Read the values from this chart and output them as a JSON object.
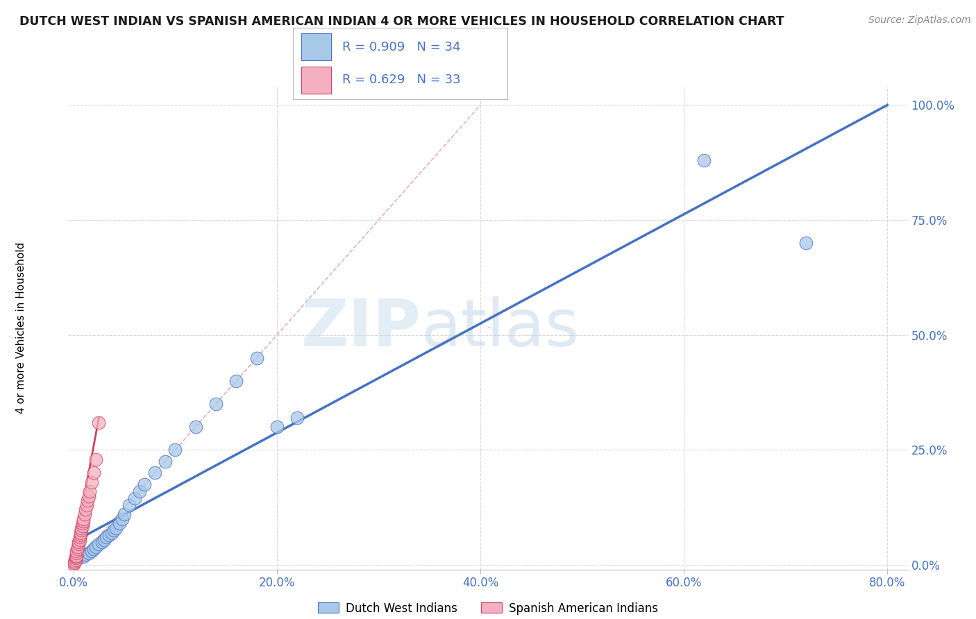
{
  "title": "DUTCH WEST INDIAN VS SPANISH AMERICAN INDIAN 4 OR MORE VEHICLES IN HOUSEHOLD CORRELATION CHART",
  "source": "Source: ZipAtlas.com",
  "ylabel": "4 or more Vehicles in Household",
  "xlabel_ticks": [
    0.0,
    0.2,
    0.4,
    0.6,
    0.8
  ],
  "xlabel_labels": [
    "0.0%",
    "20.0%",
    "40.0%",
    "60.0%",
    "80.0%"
  ],
  "ylabel_ticks": [
    0.0,
    0.25,
    0.5,
    0.75,
    1.0
  ],
  "ylabel_labels": [
    "0.0%",
    "25.0%",
    "50.0%",
    "75.0%",
    "100.0%"
  ],
  "xlim": [
    -0.005,
    0.82
  ],
  "ylim": [
    -0.01,
    1.04
  ],
  "legend_blue_r": "R = 0.909",
  "legend_blue_n": "N = 34",
  "legend_pink_r": "R = 0.629",
  "legend_pink_n": "N = 33",
  "legend_blue_label": "Dutch West Indians",
  "legend_pink_label": "Spanish American Indians",
  "blue_scatter_x": [
    0.005,
    0.008,
    0.01,
    0.012,
    0.015,
    0.018,
    0.02,
    0.022,
    0.025,
    0.028,
    0.03,
    0.032,
    0.035,
    0.038,
    0.04,
    0.042,
    0.045,
    0.048,
    0.05,
    0.055,
    0.06,
    0.065,
    0.07,
    0.08,
    0.09,
    0.1,
    0.12,
    0.14,
    0.16,
    0.18,
    0.2,
    0.22,
    0.62,
    0.72
  ],
  "blue_scatter_y": [
    0.015,
    0.02,
    0.018,
    0.022,
    0.025,
    0.03,
    0.035,
    0.04,
    0.045,
    0.05,
    0.055,
    0.06,
    0.065,
    0.07,
    0.075,
    0.08,
    0.09,
    0.1,
    0.11,
    0.13,
    0.145,
    0.16,
    0.175,
    0.2,
    0.225,
    0.25,
    0.3,
    0.35,
    0.4,
    0.45,
    0.3,
    0.32,
    0.88,
    0.7
  ],
  "pink_scatter_x": [
    0.0,
    0.001,
    0.001,
    0.002,
    0.002,
    0.002,
    0.003,
    0.003,
    0.003,
    0.004,
    0.004,
    0.005,
    0.005,
    0.006,
    0.006,
    0.007,
    0.007,
    0.008,
    0.008,
    0.009,
    0.009,
    0.01,
    0.01,
    0.011,
    0.012,
    0.013,
    0.014,
    0.015,
    0.016,
    0.018,
    0.02,
    0.022,
    0.025
  ],
  "pink_scatter_y": [
    0.002,
    0.005,
    0.008,
    0.01,
    0.015,
    0.018,
    0.02,
    0.025,
    0.03,
    0.035,
    0.04,
    0.045,
    0.05,
    0.055,
    0.06,
    0.065,
    0.07,
    0.075,
    0.08,
    0.085,
    0.09,
    0.095,
    0.1,
    0.11,
    0.12,
    0.13,
    0.14,
    0.15,
    0.16,
    0.18,
    0.2,
    0.23,
    0.31
  ],
  "blue_line_x": [
    0.0,
    0.8
  ],
  "blue_line_y": [
    0.05,
    1.0
  ],
  "pink_line_x": [
    0.0,
    0.025
  ],
  "pink_line_y": [
    0.02,
    0.32
  ],
  "diag_line_x": [
    0.0,
    0.4
  ],
  "diag_line_y": [
    0.0,
    1.0
  ],
  "blue_color": "#a8c8e8",
  "pink_color": "#f4b0c0",
  "blue_line_color": "#4472c4",
  "pink_line_color": "#d04060",
  "diag_line_color": "#e8b0bc",
  "watermark_color": "#cce0f0",
  "background_color": "#ffffff",
  "grid_color": "#d8d8d8",
  "tick_color": "#4472c4",
  "title_color": "#1a1a1a",
  "source_color": "#888888"
}
